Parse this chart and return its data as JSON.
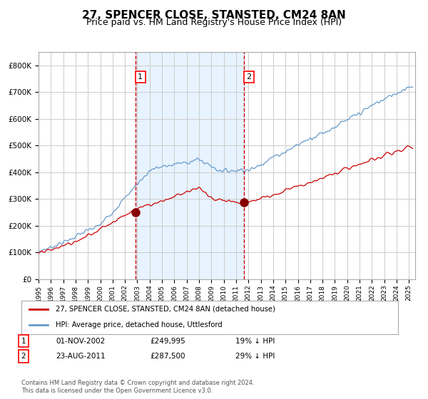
{
  "title": "27, SPENCER CLOSE, STANSTED, CM24 8AN",
  "subtitle": "Price paid vs. HM Land Registry's House Price Index (HPI)",
  "title_fontsize": 11,
  "subtitle_fontsize": 9,
  "background_color": "#ffffff",
  "plot_bg_color": "#ffffff",
  "grid_color": "#cccccc",
  "hpi_line_color": "#6699cc",
  "price_line_color": "#cc0000",
  "shade_color": "#ddeeff",
  "vline_color": "#cc0000",
  "marker_color": "#880000",
  "sale1_date": 2002.84,
  "sale1_price": 249995,
  "sale1_label": "1",
  "sale2_date": 2011.64,
  "sale2_price": 287500,
  "sale2_label": "2",
  "ylim_min": 0,
  "ylim_max": 850000,
  "ytick_step": 100000,
  "xlabel": "",
  "ylabel": "",
  "legend_hpi_label": "HPI: Average price, detached house, Uttlesford",
  "legend_price_label": "27, SPENCER CLOSE, STANSTED, CM24 8AN (detached house)",
  "table_row1": "01-NOV-2002    £249,995    19% ↓ HPI",
  "table_row2": "23-AUG-2011    £287,500    29% ↓ HPI",
  "footer": "Contains HM Land Registry data © Crown copyright and database right 2024.\nThis data is licensed under the Open Government Licence v3.0.",
  "xmin": 1995.0,
  "xmax": 2025.5
}
